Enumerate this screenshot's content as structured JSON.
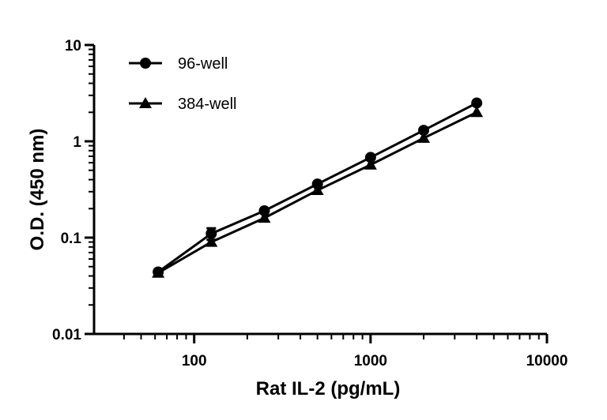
{
  "chart_data": {
    "type": "line",
    "title": "",
    "xlabel": "Rat IL-2 (pg/mL)",
    "ylabel": "O.D. (450 nm)",
    "xscale": "log",
    "yscale": "log",
    "xlim": [
      30,
      10000
    ],
    "ylim": [
      0.01,
      10
    ],
    "xticks": [
      "100",
      "1000",
      "10000"
    ],
    "yticks": [
      "0.01",
      "0.1",
      "1",
      "10"
    ],
    "grid": false,
    "legend_position": "top-left",
    "x": [
      62.5,
      125,
      250,
      500,
      1000,
      2000,
      4000
    ],
    "series": [
      {
        "name": "96-well",
        "marker": "circle",
        "values": [
          0.044,
          0.11,
          0.19,
          0.36,
          0.68,
          1.3,
          2.5
        ],
        "error_bars": [
          null,
          [
            0.095,
            0.125
          ],
          null,
          null,
          null,
          null,
          null
        ]
      },
      {
        "name": "384-well",
        "marker": "triangle",
        "values": [
          0.043,
          0.09,
          0.16,
          0.31,
          0.57,
          1.08,
          2.0
        ]
      }
    ],
    "color": "#000000"
  }
}
